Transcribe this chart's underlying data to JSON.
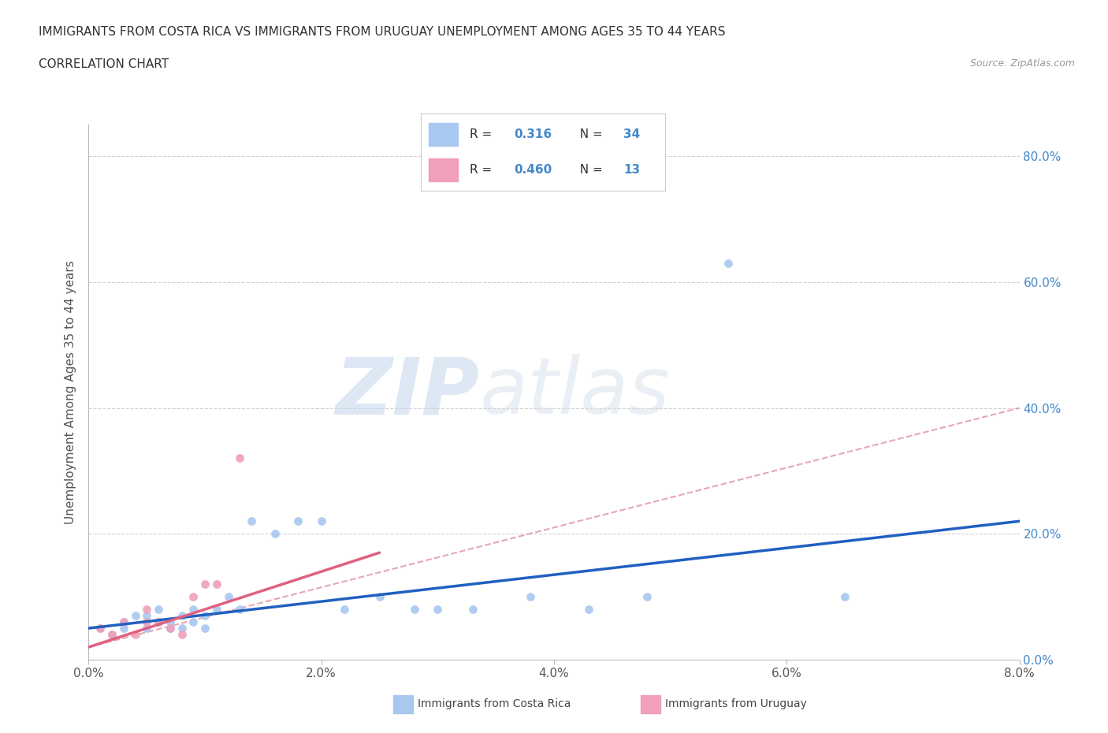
{
  "title_line1": "IMMIGRANTS FROM COSTA RICA VS IMMIGRANTS FROM URUGUAY UNEMPLOYMENT AMONG AGES 35 TO 44 YEARS",
  "title_line2": "CORRELATION CHART",
  "source_text": "Source: ZipAtlas.com",
  "ylabel": "Unemployment Among Ages 35 to 44 years",
  "watermark_zip": "ZIP",
  "watermark_atlas": "atlas",
  "costa_rica_R": "0.316",
  "costa_rica_N": "34",
  "uruguay_R": "0.460",
  "uruguay_N": "13",
  "xmin": 0.0,
  "xmax": 0.08,
  "ymin": 0.0,
  "ymax": 0.85,
  "xticks": [
    0.0,
    0.02,
    0.04,
    0.06,
    0.08
  ],
  "yticks": [
    0.0,
    0.2,
    0.4,
    0.6,
    0.8
  ],
  "xtick_labels": [
    "0.0%",
    "2.0%",
    "4.0%",
    "6.0%",
    "8.0%"
  ],
  "ytick_labels": [
    "0.0%",
    "20.0%",
    "40.0%",
    "60.0%",
    "80.0%"
  ],
  "costa_rica_color": "#a8c8f0",
  "uruguay_color": "#f0a0b8",
  "trend_costa_rica_color": "#2060c0",
  "trend_uruguay_color": "#e06080",
  "trend_uruguay_dash_color": "#e090a8",
  "background_color": "#ffffff",
  "grid_color": "#cccccc",
  "right_axis_color": "#4488cc",
  "legend_border_color": "#cccccc",
  "costa_rica_x": [
    0.001,
    0.002,
    0.003,
    0.003,
    0.004,
    0.005,
    0.005,
    0.006,
    0.006,
    0.007,
    0.007,
    0.008,
    0.008,
    0.009,
    0.009,
    0.01,
    0.01,
    0.011,
    0.012,
    0.013,
    0.014,
    0.016,
    0.018,
    0.02,
    0.022,
    0.025,
    0.028,
    0.03,
    0.033,
    0.038,
    0.043,
    0.048,
    0.055,
    0.065
  ],
  "costa_rica_y": [
    0.05,
    0.04,
    0.06,
    0.05,
    0.07,
    0.05,
    0.07,
    0.06,
    0.08,
    0.06,
    0.05,
    0.07,
    0.05,
    0.08,
    0.06,
    0.07,
    0.05,
    0.08,
    0.1,
    0.08,
    0.22,
    0.2,
    0.22,
    0.22,
    0.08,
    0.1,
    0.08,
    0.08,
    0.08,
    0.1,
    0.08,
    0.1,
    0.63,
    0.1
  ],
  "uruguay_x": [
    0.001,
    0.002,
    0.003,
    0.004,
    0.005,
    0.005,
    0.006,
    0.007,
    0.008,
    0.009,
    0.01,
    0.011,
    0.013
  ],
  "uruguay_y": [
    0.05,
    0.04,
    0.06,
    0.04,
    0.06,
    0.08,
    0.06,
    0.05,
    0.04,
    0.1,
    0.12,
    0.12,
    0.32
  ],
  "costa_rica_trend_x": [
    0.0,
    0.08
  ],
  "costa_rica_trend_y": [
    0.05,
    0.22
  ],
  "uruguay_solid_trend_x": [
    0.0,
    0.025
  ],
  "uruguay_solid_trend_y": [
    0.02,
    0.17
  ],
  "uruguay_dash_trend_x": [
    0.0,
    0.08
  ],
  "uruguay_dash_trend_y": [
    0.02,
    0.4
  ],
  "legend_cr_label": "Immigrants from Costa Rica",
  "legend_uy_label": "Immigrants from Uruguay"
}
